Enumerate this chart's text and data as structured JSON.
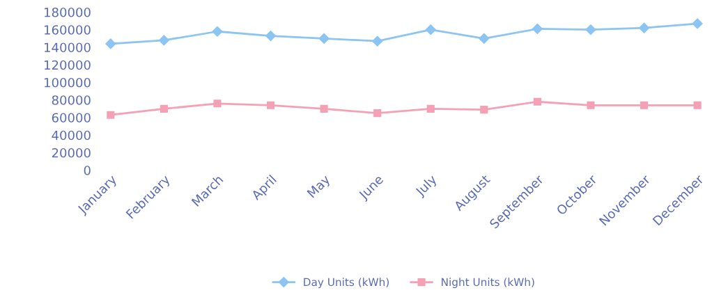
{
  "chart_data": {
    "type": "line",
    "categories": [
      "January",
      "February",
      "March",
      "April",
      "May",
      "June",
      "July",
      "August",
      "September",
      "October",
      "November",
      "December"
    ],
    "series": [
      {
        "name": "Day Units (kWh)",
        "color": "#8cc4f2",
        "marker": "diamond",
        "values": [
          144000,
          148000,
          158000,
          153000,
          150000,
          147000,
          160000,
          150000,
          161000,
          160000,
          162000,
          167000
        ]
      },
      {
        "name": "Night Units (kWh)",
        "color": "#f4a0b5",
        "marker": "square",
        "values": [
          63000,
          70000,
          76000,
          74000,
          70000,
          65000,
          70000,
          69000,
          78000,
          74000,
          74000,
          74000
        ]
      }
    ],
    "ylim": [
      0,
      180000
    ],
    "yticks": [
      0,
      20000,
      40000,
      60000,
      80000,
      100000,
      120000,
      140000,
      160000,
      180000
    ],
    "grid": false,
    "legend": "bottom"
  }
}
